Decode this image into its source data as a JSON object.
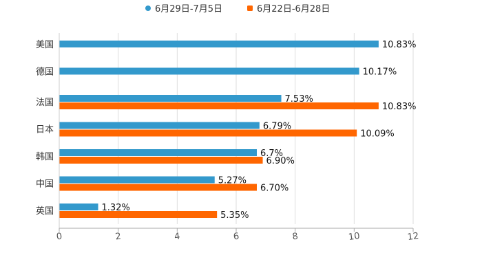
{
  "chart_data": {
    "type": "bar",
    "orientation": "horizontal",
    "categories": [
      "美国",
      "德国",
      "法国",
      "日本",
      "韩国",
      "中国",
      "英国"
    ],
    "series": [
      {
        "name": "6月29日-7月5日",
        "color": "#3399cc",
        "values": [
          10.83,
          10.17,
          7.53,
          6.79,
          6.7,
          5.27,
          1.32
        ],
        "labels": [
          "10.83%",
          "10.17%",
          "7.53%",
          "6.79%",
          "6.7%",
          "5.27%",
          "1.32%"
        ]
      },
      {
        "name": "6月22日-6月28日",
        "color": "#ff6600",
        "values": [
          null,
          null,
          10.83,
          10.09,
          6.9,
          6.7,
          5.35
        ],
        "labels": [
          null,
          null,
          "10.83%",
          "10.09%",
          "6.90%",
          "6.70%",
          "5.35%"
        ]
      }
    ],
    "xlim": [
      0,
      12
    ],
    "xticks": [
      "0",
      "2",
      "4",
      "6",
      "8",
      "10",
      "12"
    ],
    "legend_position": "top-center",
    "grid": true,
    "title": "",
    "xlabel": "",
    "ylabel": ""
  }
}
